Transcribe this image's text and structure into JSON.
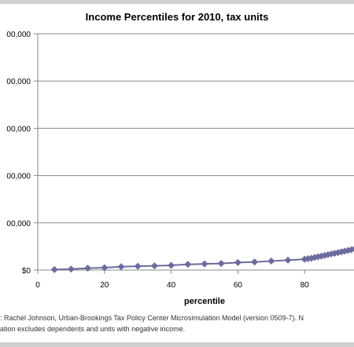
{
  "chart_data": {
    "type": "line",
    "title": "Income Percentiles for 2010, tax units",
    "xlabel": "percentile",
    "ylabel": "",
    "xlim": [
      0,
      95
    ],
    "ylim": [
      0,
      500000
    ],
    "x_ticks": [
      0,
      20,
      40,
      60,
      80
    ],
    "y_tick_values": [
      0,
      100000,
      200000,
      300000,
      400000,
      500000
    ],
    "y_tick_labels": [
      "$0",
      "00,000",
      "00,000",
      "00,000",
      "00,000",
      "00,000"
    ],
    "grid": "horizontal",
    "legend": "none",
    "series": [
      {
        "color": "#6b6b9e",
        "marker": "diamond",
        "x": [
          5,
          10,
          15,
          20,
          25,
          30,
          35,
          40,
          45,
          50,
          55,
          60,
          65,
          70,
          75,
          80,
          81,
          82,
          83,
          84,
          85,
          86,
          87,
          88,
          89,
          90,
          91,
          92,
          93,
          94,
          95
        ],
        "y": [
          1000,
          2000,
          4000,
          5000,
          7000,
          8000,
          9000,
          10000,
          12000,
          13000,
          14000,
          16000,
          17000,
          19000,
          21000,
          23000,
          24000,
          25000,
          26500,
          28000,
          29500,
          31000,
          32500,
          34000,
          35500,
          37000,
          38500,
          40000,
          41500,
          43000,
          45000
        ]
      }
    ]
  },
  "source": {
    "line1": ": Rachel Johnson, Urban-Brookings Tax Policy Center Microsimulation Model (version 0509-7). N",
    "line2": "ation excludes dependents and units with negative income."
  }
}
